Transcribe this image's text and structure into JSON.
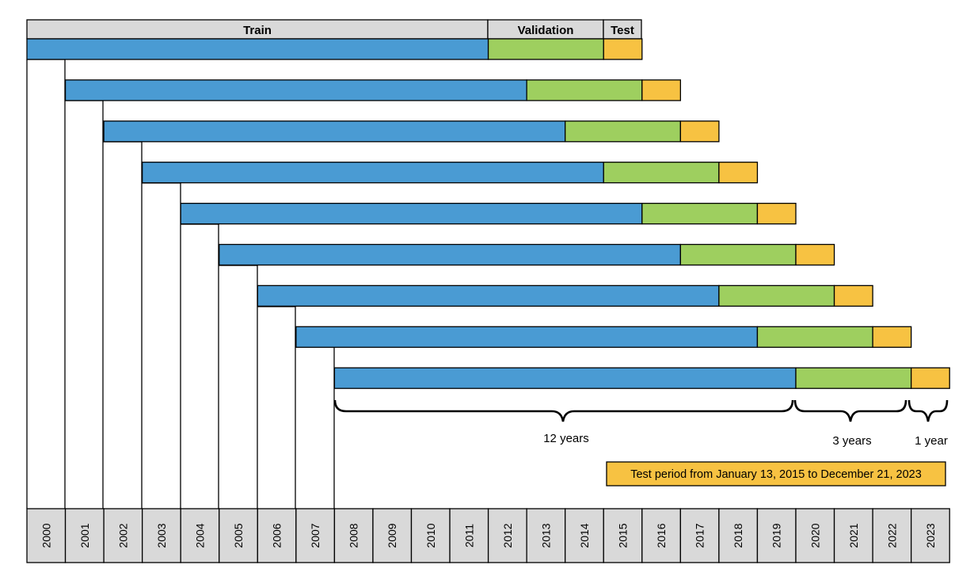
{
  "header": {
    "train_label": "Train",
    "validation_label": "Validation",
    "test_label": "Test"
  },
  "years": [
    "2000",
    "2001",
    "2002",
    "2003",
    "2004",
    "2005",
    "2006",
    "2007",
    "2008",
    "2009",
    "2010",
    "2011",
    "2012",
    "2013",
    "2014",
    "2015",
    "2016",
    "2017",
    "2018",
    "2019",
    "2020",
    "2021",
    "2022",
    "2023"
  ],
  "windows": [
    {
      "train_start": 2000,
      "train_years": 12,
      "validation_years": 3,
      "test_years": 1
    },
    {
      "train_start": 2001,
      "train_years": 12,
      "validation_years": 3,
      "test_years": 1
    },
    {
      "train_start": 2002,
      "train_years": 12,
      "validation_years": 3,
      "test_years": 1
    },
    {
      "train_start": 2003,
      "train_years": 12,
      "validation_years": 3,
      "test_years": 1
    },
    {
      "train_start": 2004,
      "train_years": 12,
      "validation_years": 3,
      "test_years": 1
    },
    {
      "train_start": 2005,
      "train_years": 12,
      "validation_years": 3,
      "test_years": 1
    },
    {
      "train_start": 2006,
      "train_years": 12,
      "validation_years": 3,
      "test_years": 1
    },
    {
      "train_start": 2007,
      "train_years": 12,
      "validation_years": 3,
      "test_years": 1
    },
    {
      "train_start": 2008,
      "train_years": 12,
      "validation_years": 3,
      "test_years": 1
    }
  ],
  "braces": {
    "train_label": "12 years",
    "validation_label": "3 years",
    "test_label": "1 year"
  },
  "note": "Test period from January 13, 2015 to December 21, 2023",
  "colors": {
    "train": "#4a9bd3",
    "validation": "#9ecf5f",
    "test": "#f7c242",
    "header_bg": "#d9d9d9",
    "axis_bg": "#d9d9d9",
    "note_bg": "#f7c242"
  }
}
